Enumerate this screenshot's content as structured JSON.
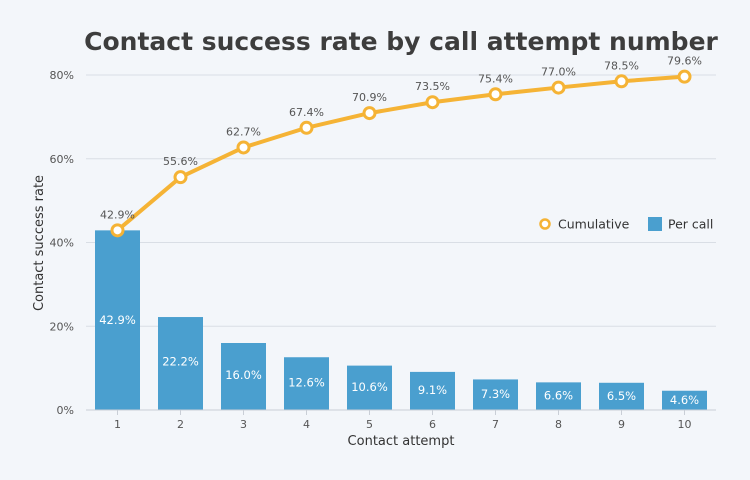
{
  "chart_data": {
    "type": "bar",
    "title": "Contact success rate by call attempt number",
    "xlabel": "Contact attempt",
    "ylabel": "Contact success rate",
    "categories": [
      "1",
      "2",
      "3",
      "4",
      "5",
      "6",
      "7",
      "8",
      "9",
      "10"
    ],
    "ylim": [
      0,
      80
    ],
    "yticks": [
      "0%",
      "20%",
      "40%",
      "60%",
      "80%"
    ],
    "grid": true,
    "legend_position": "right",
    "series": [
      {
        "name": "Per call",
        "kind": "bar",
        "color": "#4a9fcf",
        "values": [
          42.9,
          22.2,
          16.0,
          12.6,
          10.6,
          9.1,
          7.3,
          6.6,
          6.5,
          4.6
        ],
        "labels": [
          "42.9%",
          "22.2%",
          "16.0%",
          "12.6%",
          "10.6%",
          "9.1%",
          "7.3%",
          "6.6%",
          "6.5%",
          "4.6%"
        ]
      },
      {
        "name": "Cumulative",
        "kind": "line",
        "color": "#f5b335",
        "values": [
          42.9,
          55.6,
          62.7,
          67.4,
          70.9,
          73.5,
          75.4,
          77.0,
          78.5,
          79.6
        ],
        "labels": [
          "42.9%",
          "55.6%",
          "62.7%",
          "67.4%",
          "70.9%",
          "73.5%",
          "75.4%",
          "77.0%",
          "78.5%",
          "79.6%"
        ]
      }
    ]
  }
}
